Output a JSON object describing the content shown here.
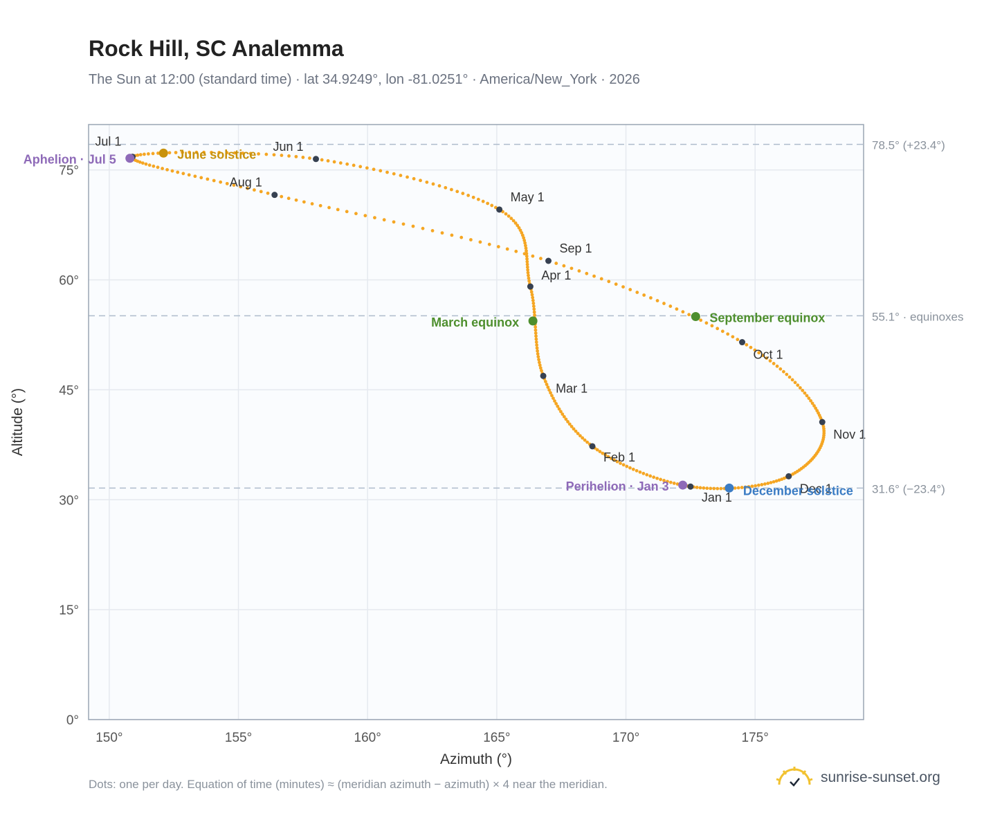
{
  "header": {
    "title": "Rock Hill, SC Analemma",
    "subtitle": "The Sun at 12:00 (standard time) · lat 34.9249°, lon -81.0251° · America/New_York · 2026"
  },
  "footer": {
    "note": "Dots: one per day. Equation of time (minutes) ≈ (meridian azimuth − azimuth) × 4 near the meridian.",
    "brand": "sunrise-sunset.org"
  },
  "colors": {
    "path": "#f5a623",
    "month_marker": "#374151",
    "june_solstice": "#c8920c",
    "december_solstice": "#3b7cc4",
    "equinox": "#4e8f2e",
    "apsis": "#8e6ab8",
    "grid": "#e5e9ef",
    "reference_line": "#aebccc",
    "plot_bg": "#fafcfe",
    "axis_border": "#9aa5b4"
  },
  "chart_data": {
    "type": "scatter",
    "xlabel": "Azimuth (°)",
    "ylabel": "Altitude (°)",
    "xlim": [
      149.2,
      179.2
    ],
    "ylim": [
      0,
      81.2
    ],
    "x_ticks": [
      150,
      155,
      160,
      165,
      170,
      175
    ],
    "x_tick_labels": [
      "150°",
      "155°",
      "160°",
      "165°",
      "170°",
      "175°"
    ],
    "y_ticks": [
      0,
      15,
      30,
      45,
      60,
      75
    ],
    "y_tick_labels": [
      "0°",
      "15°",
      "30°",
      "45°",
      "60°",
      "75°"
    ],
    "grid": true,
    "reference_lines": [
      {
        "y": 78.5,
        "label": "78.5° (+23.4°)"
      },
      {
        "y": 55.1,
        "label": "55.1° · equinoxes"
      },
      {
        "y": 31.6,
        "label": "31.6° (−23.4°)"
      }
    ],
    "month_markers": [
      {
        "label": "Jan 1",
        "x": 172.5,
        "y": 31.8
      },
      {
        "label": "Feb 1",
        "x": 168.7,
        "y": 37.3
      },
      {
        "label": "Mar 1",
        "x": 166.8,
        "y": 46.9
      },
      {
        "label": "Apr 1",
        "x": 166.3,
        "y": 59.1
      },
      {
        "label": "May 1",
        "x": 165.1,
        "y": 69.6
      },
      {
        "label": "Jun 1",
        "x": 158.0,
        "y": 76.5
      },
      {
        "label": "Jul 1",
        "x": 150.9,
        "y": 76.8
      },
      {
        "label": "Aug 1",
        "x": 156.4,
        "y": 71.6
      },
      {
        "label": "Sep 1",
        "x": 167.0,
        "y": 62.6
      },
      {
        "label": "Oct 1",
        "x": 174.5,
        "y": 51.5
      },
      {
        "label": "Nov 1",
        "x": 177.6,
        "y": 40.6
      },
      {
        "label": "Dec 1",
        "x": 176.3,
        "y": 33.2
      }
    ],
    "events": [
      {
        "label": "June solstice",
        "x": 152.1,
        "y": 77.3,
        "kind": "june_solstice"
      },
      {
        "label": "December solstice",
        "x": 174.0,
        "y": 31.6,
        "kind": "december_solstice"
      },
      {
        "label": "March equinox",
        "x": 166.4,
        "y": 54.4,
        "kind": "equinox"
      },
      {
        "label": "September equinox",
        "x": 172.7,
        "y": 55.0,
        "kind": "equinox"
      },
      {
        "label": "Aphelion · Jul 5",
        "x": 150.8,
        "y": 76.6,
        "kind": "apsis"
      },
      {
        "label": "Perihelion · Jan 3",
        "x": 172.2,
        "y": 32.0,
        "kind": "apsis"
      }
    ]
  }
}
